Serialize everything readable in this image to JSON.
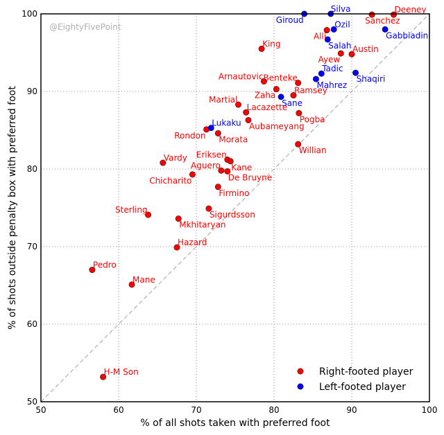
{
  "chart_data": {
    "type": "scatter",
    "title": "",
    "xlabel": "% of all shots taken with preferred foot",
    "ylabel": "% of shots outside penalty box with preferred foot",
    "xlim": [
      50,
      100
    ],
    "ylim": [
      50,
      100
    ],
    "xticks": [
      "50",
      "60",
      "70",
      "80",
      "90",
      "100"
    ],
    "yticks": [
      "50",
      "60",
      "70",
      "80",
      "90",
      "100"
    ],
    "grid": true,
    "reference_line": "y = x",
    "watermark": "@EightyFivePoint",
    "legend_position": "bottom-right",
    "colors": {
      "right": "#ff0000",
      "left": "#0000ff"
    },
    "series": [
      {
        "name": "Right-footed player",
        "key": "right",
        "points": [
          {
            "label": "Deeney",
            "x": 95.4,
            "y": 99.9
          },
          {
            "label": "Sanchez",
            "x": 92.6,
            "y": 99.9
          },
          {
            "label": "Alli",
            "x": 86.8,
            "y": 97.9
          },
          {
            "label": "King",
            "x": 78.4,
            "y": 95.5
          },
          {
            "label": "Austin",
            "x": 90.0,
            "y": 94.8
          },
          {
            "label": "Ayew",
            "x": 88.6,
            "y": 94.9
          },
          {
            "label": "Arnautovic",
            "x": 78.7,
            "y": 91.3
          },
          {
            "label": "Benteke",
            "x": 83.1,
            "y": 91.1
          },
          {
            "label": "Zaha",
            "x": 80.3,
            "y": 90.3
          },
          {
            "label": "Ramsey",
            "x": 82.5,
            "y": 89.5
          },
          {
            "label": "Martial",
            "x": 75.4,
            "y": 88.3
          },
          {
            "label": "Lacazette",
            "x": 76.4,
            "y": 87.3
          },
          {
            "label": "Pogba",
            "x": 83.2,
            "y": 87.2
          },
          {
            "label": "Aubameyang",
            "x": 76.7,
            "y": 86.3
          },
          {
            "label": "Rondon",
            "x": 71.3,
            "y": 85.1
          },
          {
            "label": "Morata",
            "x": 72.8,
            "y": 84.6
          },
          {
            "label": "Willian",
            "x": 83.1,
            "y": 83.2
          },
          {
            "label": "Vardy",
            "x": 65.7,
            "y": 80.8
          },
          {
            "label": "Eriksen",
            "x": 74.0,
            "y": 81.2
          },
          {
            "label": "Kane",
            "x": 74.4,
            "y": 81.0
          },
          {
            "label": "Aguero",
            "x": 73.2,
            "y": 79.8
          },
          {
            "label": "De Bruyne",
            "x": 74.0,
            "y": 79.7
          },
          {
            "label": "Chicharito",
            "x": 69.5,
            "y": 79.3
          },
          {
            "label": "Firmino",
            "x": 72.8,
            "y": 77.7
          },
          {
            "label": "Sigurdsson",
            "x": 71.6,
            "y": 74.9
          },
          {
            "label": "Sterling",
            "x": 63.8,
            "y": 74.1
          },
          {
            "label": "Mkhitaryan",
            "x": 67.7,
            "y": 73.6
          },
          {
            "label": "Hazard",
            "x": 67.5,
            "y": 69.9
          },
          {
            "label": "Pedro",
            "x": 56.6,
            "y": 67.0
          },
          {
            "label": "Mane",
            "x": 61.7,
            "y": 65.1
          },
          {
            "label": "H-M Son",
            "x": 58.0,
            "y": 53.2
          }
        ]
      },
      {
        "name": "Left-footed player",
        "key": "left",
        "points": [
          {
            "label": "Silva",
            "x": 87.3,
            "y": 100.0
          },
          {
            "label": "Giroud",
            "x": 83.9,
            "y": 100.0
          },
          {
            "label": "Ozil",
            "x": 87.7,
            "y": 98.0
          },
          {
            "label": "Gabbiadini",
            "x": 94.3,
            "y": 98.0
          },
          {
            "label": "Salah",
            "x": 86.9,
            "y": 96.7
          },
          {
            "label": "Tadic",
            "x": 86.1,
            "y": 92.3
          },
          {
            "label": "Shaqiri",
            "x": 90.5,
            "y": 92.4
          },
          {
            "label": "Mahrez",
            "x": 85.4,
            "y": 91.6
          },
          {
            "label": "Sane",
            "x": 80.9,
            "y": 89.3
          },
          {
            "label": "Lukaku",
            "x": 71.9,
            "y": 85.3
          }
        ]
      }
    ]
  }
}
